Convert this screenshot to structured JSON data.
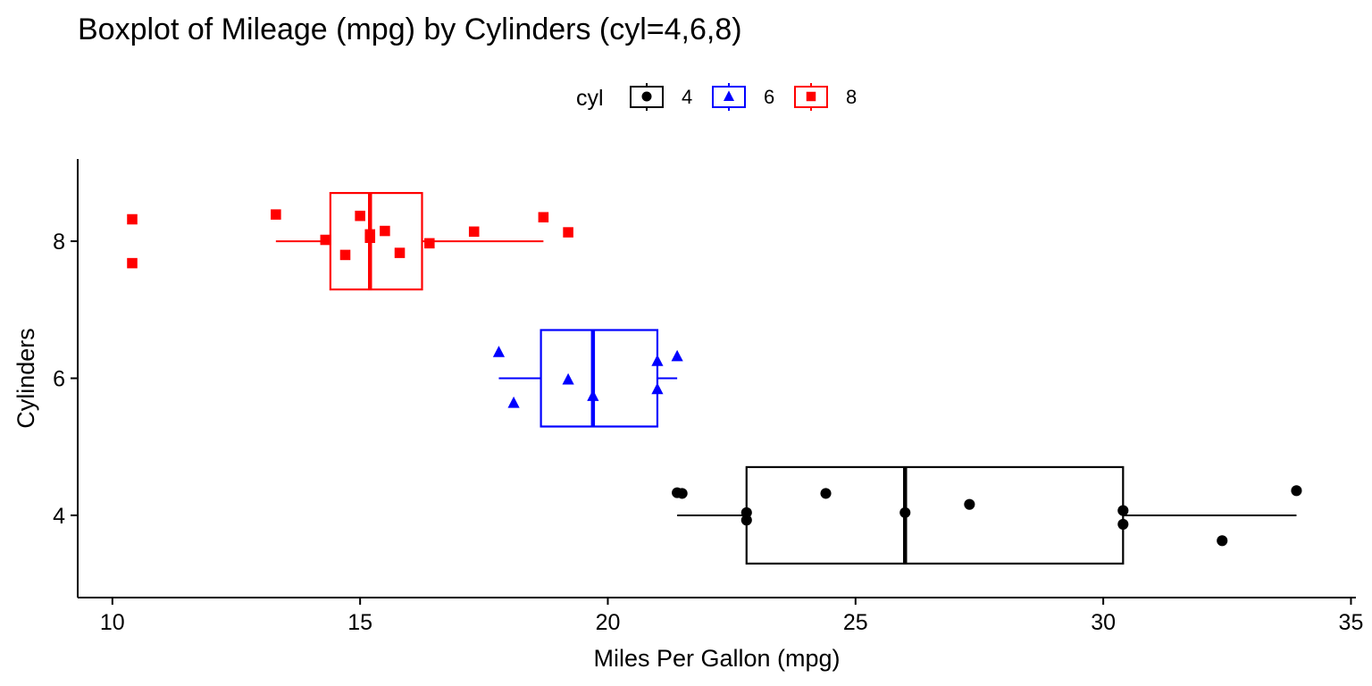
{
  "chart_data": {
    "type": "boxplot",
    "title": "Boxplot of Mileage (mpg) by Cylinders (cyl=4,6,8)",
    "orientation": "horizontal",
    "xlabel": "Miles Per Gallon (mpg)",
    "ylabel": "Cylinders",
    "xlim": [
      9.3,
      35.1
    ],
    "ylim": [
      2.8,
      9.2
    ],
    "xticks": [
      10,
      15,
      20,
      25,
      30,
      35
    ],
    "yticks": [
      4,
      6,
      8
    ],
    "grid": false,
    "legend": {
      "title": "cyl",
      "position": "top",
      "entries": [
        {
          "label": "4",
          "color": "#000000",
          "shape": "circle"
        },
        {
          "label": "6",
          "color": "#0000ff",
          "shape": "triangle"
        },
        {
          "label": "8",
          "color": "#ff0000",
          "shape": "square"
        }
      ]
    },
    "groups": [
      {
        "name": "4",
        "y": 4,
        "color": "#000000",
        "shape": "circle",
        "whisker_low": 21.4,
        "q1": 22.8,
        "median": 26.0,
        "q3": 30.4,
        "whisker_high": 33.9,
        "points": [
          {
            "x": 21.4,
            "y": 4.33
          },
          {
            "x": 21.5,
            "y": 4.32
          },
          {
            "x": 22.8,
            "y": 4.04
          },
          {
            "x": 22.8,
            "y": 3.93
          },
          {
            "x": 24.4,
            "y": 4.32
          },
          {
            "x": 26.0,
            "y": 4.04
          },
          {
            "x": 27.3,
            "y": 4.16
          },
          {
            "x": 30.4,
            "y": 4.07
          },
          {
            "x": 30.4,
            "y": 3.87
          },
          {
            "x": 32.4,
            "y": 3.63
          },
          {
            "x": 33.9,
            "y": 4.36
          }
        ]
      },
      {
        "name": "6",
        "y": 6,
        "color": "#0000ff",
        "shape": "triangle",
        "whisker_low": 17.8,
        "q1": 18.65,
        "median": 19.7,
        "q3": 21.0,
        "whisker_high": 21.4,
        "points": [
          {
            "x": 17.8,
            "y": 6.38
          },
          {
            "x": 18.1,
            "y": 5.64
          },
          {
            "x": 19.2,
            "y": 5.98
          },
          {
            "x": 19.7,
            "y": 5.74
          },
          {
            "x": 21.0,
            "y": 6.25
          },
          {
            "x": 21.0,
            "y": 5.84
          },
          {
            "x": 21.4,
            "y": 6.32
          }
        ]
      },
      {
        "name": "8",
        "y": 8,
        "color": "#ff0000",
        "shape": "square",
        "whisker_low": 13.3,
        "q1": 14.4,
        "median": 15.2,
        "q3": 16.25,
        "whisker_high": 18.7,
        "points": [
          {
            "x": 10.4,
            "y": 8.32
          },
          {
            "x": 10.4,
            "y": 7.68
          },
          {
            "x": 13.3,
            "y": 8.39
          },
          {
            "x": 14.3,
            "y": 8.02
          },
          {
            "x": 14.7,
            "y": 7.8
          },
          {
            "x": 15.0,
            "y": 8.37
          },
          {
            "x": 15.2,
            "y": 8.1
          },
          {
            "x": 15.2,
            "y": 8.05
          },
          {
            "x": 15.5,
            "y": 8.15
          },
          {
            "x": 15.8,
            "y": 7.83
          },
          {
            "x": 16.4,
            "y": 7.97
          },
          {
            "x": 17.3,
            "y": 8.14
          },
          {
            "x": 18.7,
            "y": 8.35
          },
          {
            "x": 19.2,
            "y": 8.13
          }
        ]
      }
    ]
  }
}
